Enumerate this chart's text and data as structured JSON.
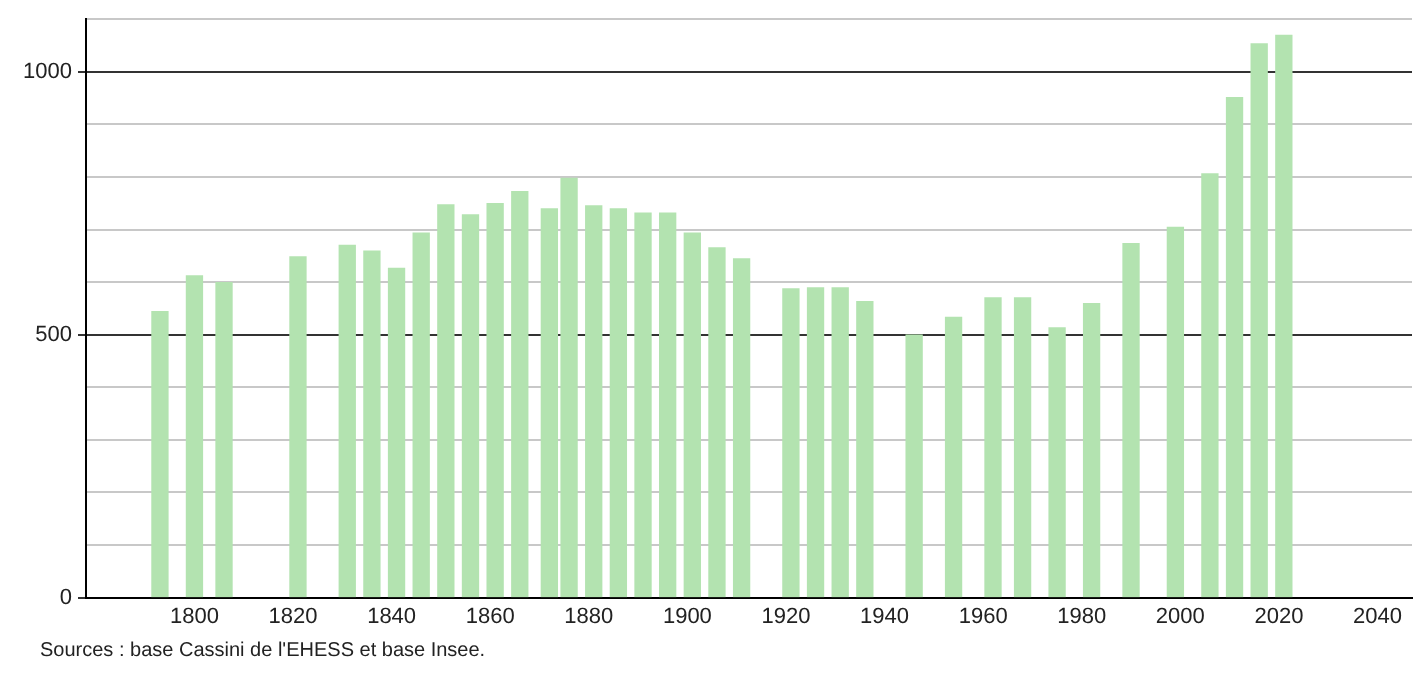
{
  "chart_data": {
    "type": "bar",
    "x": [
      1793,
      1800,
      1806,
      1821,
      1831,
      1836,
      1841,
      1846,
      1851,
      1856,
      1861,
      1866,
      1872,
      1876,
      1881,
      1886,
      1891,
      1896,
      1901,
      1906,
      1911,
      1921,
      1926,
      1931,
      1936,
      1946,
      1954,
      1962,
      1968,
      1975,
      1982,
      1990,
      1999,
      2006,
      2011,
      2016,
      2021
    ],
    "values": [
      544,
      612,
      599,
      648,
      670,
      659,
      626,
      693,
      747,
      728,
      749,
      772,
      739,
      797,
      745,
      739,
      731,
      731,
      693,
      665,
      644,
      587,
      589,
      589,
      563,
      499,
      533,
      570,
      570,
      513,
      559,
      673,
      704,
      806,
      951,
      1053,
      1069
    ],
    "color": "#b3e3b0",
    "xlim": [
      1778,
      2047
    ],
    "xticks": [
      1800,
      1820,
      1840,
      1860,
      1880,
      1900,
      1920,
      1940,
      1960,
      1980,
      2000,
      2020,
      2040
    ],
    "ylim": [
      0,
      1100
    ],
    "yticks": [
      0,
      {
        "value": 100,
        "label": null
      },
      {
        "value": 200,
        "label": null
      },
      {
        "value": 300,
        "label": null
      },
      {
        "value": 400,
        "label": null
      },
      500,
      {
        "value": 600,
        "label": null
      },
      {
        "value": 700,
        "label": null
      },
      {
        "value": 800,
        "label": null
      },
      {
        "value": 900,
        "label": null
      },
      1000,
      {
        "value": 1100,
        "label": null
      }
    ],
    "grid": "y",
    "legend": false,
    "annotations": [
      "Sources : base Cassini de l'EHESS et base Insee."
    ]
  }
}
